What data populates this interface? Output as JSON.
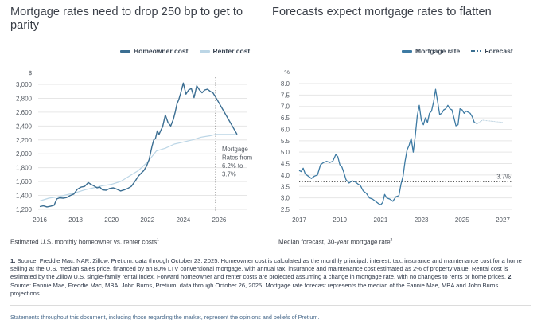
{
  "colors": {
    "homeowner": "#3b6e92",
    "renter": "#bcd6e6",
    "mortgage": "#3d7aa3",
    "forecast": "#3a6f91",
    "grid": "#e6e6e6",
    "tick_text": "#555b63"
  },
  "left": {
    "title": "Mortgage rates need to drop 250 bp to get to parity",
    "legend": [
      {
        "label": "Homeowner cost",
        "series": "homeowner"
      },
      {
        "label": "Renter cost",
        "series": "renter"
      }
    ],
    "caption": "Estimated U.S. monthly homeowner vs. renter costs",
    "caption_sup": "1"
  },
  "right": {
    "title": "Forecasts expect mortgage rates to flatten",
    "legend": [
      {
        "label": "Mortgage rate",
        "series": "mortgage"
      },
      {
        "label": "Forecast",
        "series": "forecast"
      }
    ],
    "caption": "Median forecast, 30-year mortgage rate",
    "caption_sup": "2"
  },
  "footnote": {
    "n1": "1.",
    "t1": " Source: Freddie Mac, NAR, Zillow, Pretium, data through October 23, 2025. Homeowner cost is calculated as the monthly principal, interest, tax, insurance and maintenance cost for a home selling at the U.S. median sales price, financed by an 80% LTV conventional mortgage, with annual tax, insurance and maintenance cost estimated as 2% of property value. Rental cost is estimated by the Zillow U.S. single-family rental index. Forward homeowner and renter costs are projected assuming a change in mortgage rate, with no changes to rents or home prices. ",
    "n2": "2.",
    "t2": " Source: Fannie Mae, Freddie Mac, MBA, John Burns, Pretium, data through October 26, 2025. Mortgage rate forecast represents the median of the Fannie Mae, MBA and John Burns projections."
  },
  "disclaimer": "Statements throughout this document, including those regarding the market, represent the opinions and beliefs of Pretium.",
  "chart_data": [
    {
      "type": "line",
      "title": "Mortgage rates need to drop 250 bp to get to parity",
      "ylabel": "$",
      "xlabel": "",
      "xlim": [
        2016,
        2027
      ],
      "ylim": [
        1200,
        3000
      ],
      "yticks": [
        1200,
        1400,
        1600,
        1800,
        2000,
        2200,
        2400,
        2600,
        2800,
        3000
      ],
      "ytick_labels": [
        "1,200",
        "1,400",
        "1,600",
        "1,800",
        "2,000",
        "2,200",
        "2,400",
        "2,600",
        "2,800",
        "3,000"
      ],
      "xticks": [
        2016,
        2018,
        2020,
        2022,
        2024,
        2026
      ],
      "xtick_labels": [
        "2016",
        "2018",
        "2020",
        "2022",
        "2024",
        "2026"
      ],
      "grid": true,
      "legend_position": "top-right",
      "annotation": {
        "x": 2025.8,
        "text_lines": [
          "Mortgage",
          "Rates from",
          "6.2% to",
          "3.7%"
        ]
      },
      "series": [
        {
          "name": "Homeowner cost",
          "x": [
            2016.0,
            2016.2,
            2016.4,
            2016.6,
            2016.8,
            2016.95,
            2017.1,
            2017.3,
            2017.5,
            2017.7,
            2017.9,
            2018.1,
            2018.3,
            2018.5,
            2018.7,
            2018.85,
            2019.0,
            2019.2,
            2019.35,
            2019.5,
            2019.7,
            2019.9,
            2020.1,
            2020.3,
            2020.5,
            2020.7,
            2020.9,
            2021.1,
            2021.3,
            2021.5,
            2021.65,
            2021.8,
            2021.95,
            2022.1,
            2022.25,
            2022.35,
            2022.45,
            2022.55,
            2022.65,
            2022.75,
            2022.85,
            2023.0,
            2023.15,
            2023.3,
            2023.45,
            2023.55,
            2023.65,
            2023.75,
            2023.85,
            2024.0,
            2024.15,
            2024.3,
            2024.45,
            2024.6,
            2024.75,
            2024.9,
            2025.05,
            2025.2,
            2025.35,
            2025.5,
            2025.65,
            2025.8,
            2027.0
          ],
          "values": [
            1240,
            1250,
            1235,
            1245,
            1260,
            1350,
            1365,
            1360,
            1370,
            1400,
            1420,
            1490,
            1520,
            1530,
            1585,
            1560,
            1540,
            1510,
            1520,
            1480,
            1475,
            1500,
            1510,
            1490,
            1465,
            1480,
            1500,
            1530,
            1600,
            1680,
            1720,
            1760,
            1820,
            1920,
            2100,
            2200,
            2220,
            2330,
            2280,
            2340,
            2390,
            2560,
            2450,
            2400,
            2500,
            2600,
            2720,
            2780,
            2870,
            3020,
            2860,
            2920,
            2940,
            2810,
            2980,
            2920,
            2880,
            2920,
            2930,
            2900,
            2880,
            2820,
            2280
          ]
        },
        {
          "name": "Renter cost",
          "x": [
            2016.0,
            2016.5,
            2017.0,
            2017.5,
            2018.0,
            2018.5,
            2019.0,
            2019.5,
            2020.0,
            2020.5,
            2021.0,
            2021.5,
            2022.0,
            2022.5,
            2023.0,
            2023.5,
            2024.0,
            2024.5,
            2025.0,
            2025.5,
            2025.8,
            2027.0
          ],
          "values": [
            1320,
            1360,
            1380,
            1410,
            1440,
            1480,
            1510,
            1540,
            1560,
            1600,
            1680,
            1760,
            1880,
            2040,
            2080,
            2140,
            2170,
            2200,
            2240,
            2260,
            2280,
            2280
          ]
        }
      ]
    },
    {
      "type": "line",
      "title": "Forecasts expect mortgage rates to flatten",
      "ylabel": "%",
      "xlabel": "",
      "xlim": [
        2017,
        2027
      ],
      "ylim": [
        2.5,
        8.0
      ],
      "yticks": [
        2.5,
        3.0,
        3.5,
        4.0,
        4.5,
        5.0,
        5.5,
        6.0,
        6.5,
        7.0,
        7.5,
        8.0
      ],
      "ytick_labels": [
        "2.5",
        "3.0",
        "3.5",
        "4.0",
        "4.5",
        "5.0",
        "5.5",
        "6.0",
        "6.5",
        "7.0",
        "7.5",
        "8.0"
      ],
      "xticks": [
        2017,
        2019,
        2021,
        2023,
        2025,
        2027
      ],
      "xtick_labels": [
        "2017",
        "2019",
        "2021",
        "2023",
        "2025",
        "2027"
      ],
      "grid": true,
      "legend_position": "top-right",
      "reference_line": {
        "value": 3.7,
        "label": "3.7%"
      },
      "series": [
        {
          "name": "Mortgage rate",
          "x": [
            2017.0,
            2017.1,
            2017.2,
            2017.3,
            2017.45,
            2017.6,
            2017.75,
            2017.9,
            2018.05,
            2018.2,
            2018.35,
            2018.5,
            2018.65,
            2018.8,
            2018.9,
            2019.0,
            2019.1,
            2019.2,
            2019.3,
            2019.45,
            2019.6,
            2019.75,
            2019.9,
            2020.0,
            2020.15,
            2020.3,
            2020.45,
            2020.6,
            2020.75,
            2020.9,
            2021.0,
            2021.1,
            2021.2,
            2021.3,
            2021.45,
            2021.6,
            2021.75,
            2021.9,
            2022.0,
            2022.1,
            2022.2,
            2022.3,
            2022.4,
            2022.5,
            2022.6,
            2022.7,
            2022.8,
            2022.9,
            2023.0,
            2023.1,
            2023.2,
            2023.3,
            2023.4,
            2023.5,
            2023.6,
            2023.7,
            2023.8,
            2023.9,
            2024.0,
            2024.1,
            2024.2,
            2024.3,
            2024.4,
            2024.5,
            2024.6,
            2024.7,
            2024.8,
            2024.9,
            2025.0,
            2025.1,
            2025.2,
            2025.3,
            2025.4,
            2025.5,
            2025.6,
            2025.75
          ],
          "values": [
            4.2,
            4.15,
            4.3,
            4.05,
            3.95,
            3.85,
            3.95,
            4.0,
            4.45,
            4.55,
            4.6,
            4.55,
            4.6,
            4.9,
            4.8,
            4.45,
            4.35,
            4.1,
            3.8,
            3.65,
            3.75,
            3.7,
            3.6,
            3.55,
            3.3,
            3.2,
            3.0,
            2.95,
            2.85,
            2.75,
            2.7,
            2.8,
            3.15,
            3.0,
            2.95,
            2.85,
            3.05,
            3.1,
            3.6,
            3.95,
            4.6,
            5.1,
            5.3,
            5.6,
            5.0,
            5.7,
            6.6,
            7.05,
            6.4,
            6.2,
            6.5,
            6.3,
            6.7,
            6.8,
            7.2,
            7.75,
            7.2,
            6.65,
            6.7,
            6.85,
            6.9,
            7.05,
            6.9,
            6.85,
            6.5,
            6.15,
            6.2,
            6.9,
            6.85,
            6.7,
            6.8,
            6.75,
            6.7,
            6.55,
            6.3,
            6.25
          ]
        },
        {
          "name": "Forecast",
          "x": [
            2025.75,
            2026.0,
            2026.5,
            2027.0
          ],
          "values": [
            6.25,
            6.4,
            6.35,
            6.3
          ]
        }
      ]
    }
  ]
}
